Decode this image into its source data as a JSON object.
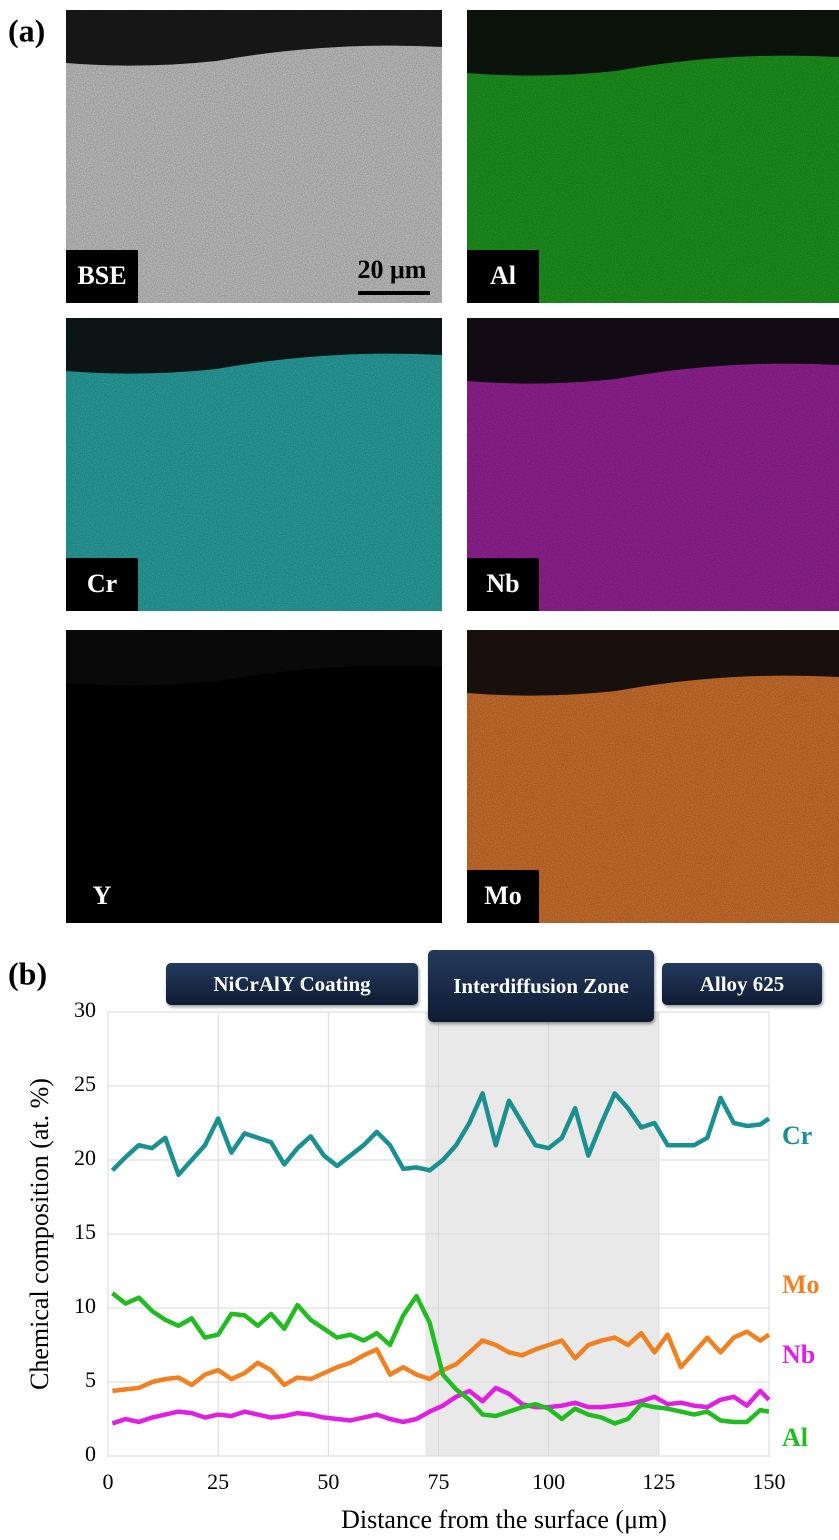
{
  "panel_a": {
    "label": "(a)",
    "scale_bar": "20 μm",
    "maps": [
      {
        "label": "BSE",
        "color": "#c9c9c9"
      },
      {
        "label": "Al",
        "color": "#1f9a1f"
      },
      {
        "label": "Cr",
        "color": "#2ba6a6"
      },
      {
        "label": "Nb",
        "color": "#9a239a"
      },
      {
        "label": "Y",
        "color": "#000000"
      },
      {
        "label": "Mo",
        "color": "#d4742e"
      }
    ]
  },
  "chart_data": {
    "type": "line",
    "panel_label": "(b)",
    "x_label": "Distance from the surface (μm)",
    "y_label": "Chemical composition (at. %)",
    "annotations": [
      "NiCrAlY Coating",
      "Interdiffusion Zone",
      "Alloy 625"
    ],
    "highlight_xlim": [
      72,
      125
    ],
    "xlim": [
      0,
      150
    ],
    "xticks": [
      0,
      25,
      50,
      75,
      100,
      125,
      150
    ],
    "ylim": [
      0,
      30
    ],
    "yticks": [
      0,
      5,
      10,
      15,
      20,
      25,
      30
    ],
    "grid": true,
    "x": [
      1,
      4,
      7,
      10,
      13,
      16,
      19,
      22,
      25,
      28,
      31,
      34,
      37,
      40,
      43,
      46,
      49,
      52,
      55,
      58,
      61,
      64,
      67,
      70,
      73,
      76,
      79,
      82,
      85,
      88,
      91,
      94,
      97,
      100,
      103,
      106,
      109,
      112,
      115,
      118,
      121,
      124,
      127,
      130,
      133,
      136,
      139,
      142,
      145,
      148,
      150
    ],
    "series": [
      {
        "name": "Cr",
        "color": "#1a9090",
        "values": [
          19.3,
          20.2,
          21,
          20.8,
          21.5,
          19,
          20,
          21,
          22.8,
          20.5,
          21.8,
          21.5,
          21.2,
          19.7,
          20.8,
          21.6,
          20.3,
          19.6,
          20.3,
          21,
          21.9,
          21,
          19.4,
          19.5,
          19.3,
          20,
          21,
          22.5,
          24.5,
          21,
          24,
          22.5,
          21,
          20.8,
          21.5,
          23.5,
          20.3,
          22.5,
          24.5,
          23.5,
          22.2,
          22.5,
          21,
          21,
          21,
          21.5,
          24.2,
          22.5,
          22.3,
          22.4,
          22.8
        ]
      },
      {
        "name": "Mo",
        "color": "#f08020",
        "values": [
          4.4,
          4.5,
          4.6,
          5,
          5.2,
          5.3,
          4.8,
          5.5,
          5.8,
          5.2,
          5.6,
          6.3,
          5.8,
          4.8,
          5.3,
          5.2,
          5.6,
          6,
          6.3,
          6.8,
          7.2,
          5.5,
          6,
          5.5,
          5.2,
          5.8,
          6.2,
          7,
          7.8,
          7.5,
          7,
          6.8,
          7.2,
          7.5,
          7.8,
          6.6,
          7.5,
          7.8,
          8,
          7.5,
          8.3,
          7,
          8.2,
          6,
          7,
          8,
          7,
          8,
          8.4,
          7.8,
          8.2
        ]
      },
      {
        "name": "Nb",
        "color": "#e020e0",
        "values": [
          2.2,
          2.5,
          2.3,
          2.6,
          2.8,
          3,
          2.9,
          2.6,
          2.8,
          2.7,
          3,
          2.8,
          2.6,
          2.7,
          2.9,
          2.8,
          2.6,
          2.5,
          2.4,
          2.6,
          2.8,
          2.5,
          2.3,
          2.5,
          3,
          3.4,
          4,
          4.4,
          3.7,
          4.6,
          4.2,
          3.5,
          3.3,
          3.3,
          3.4,
          3.6,
          3.3,
          3.3,
          3.4,
          3.5,
          3.7,
          4,
          3.5,
          3.6,
          3.4,
          3.3,
          3.8,
          4,
          3.4,
          4.4,
          3.8
        ]
      },
      {
        "name": "Al",
        "color": "#22bb22",
        "values": [
          11,
          10.3,
          10.7,
          9.8,
          9.2,
          8.8,
          9.3,
          8,
          8.2,
          9.6,
          9.5,
          8.8,
          9.6,
          8.6,
          10.2,
          9.2,
          8.6,
          8,
          8.2,
          7.8,
          8.3,
          7.5,
          9.5,
          10.8,
          9,
          5.5,
          4.5,
          3.8,
          2.8,
          2.7,
          3,
          3.3,
          3.5,
          3.2,
          2.5,
          3.2,
          2.8,
          2.6,
          2.2,
          2.5,
          3.5,
          3.3,
          3.2,
          3,
          2.8,
          3,
          2.4,
          2.3,
          2.3,
          3.1,
          3
        ]
      }
    ]
  }
}
